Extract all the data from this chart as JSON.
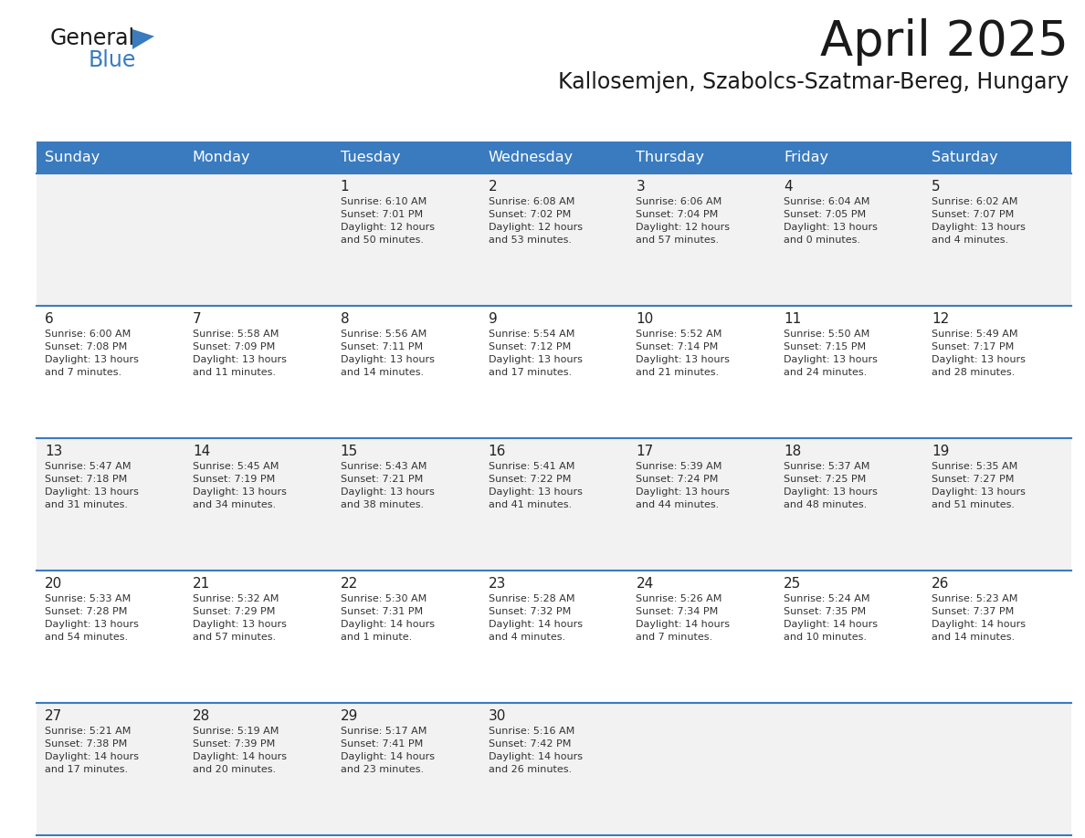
{
  "title": "April 2025",
  "subtitle": "Kallosemjen, Szabolcs-Szatmar-Bereg, Hungary",
  "header_color": "#3a7bbf",
  "header_text_color": "#ffffff",
  "row_colors": [
    "#f2f2f2",
    "#ffffff",
    "#f2f2f2",
    "#ffffff",
    "#f2f2f2"
  ],
  "border_color": "#3a7bbf",
  "text_color": "#333333",
  "day_num_color": "#222222",
  "days_of_week": [
    "Sunday",
    "Monday",
    "Tuesday",
    "Wednesday",
    "Thursday",
    "Friday",
    "Saturday"
  ],
  "weeks": [
    [
      {
        "day": "",
        "info": ""
      },
      {
        "day": "",
        "info": ""
      },
      {
        "day": "1",
        "info": "Sunrise: 6:10 AM\nSunset: 7:01 PM\nDaylight: 12 hours\nand 50 minutes."
      },
      {
        "day": "2",
        "info": "Sunrise: 6:08 AM\nSunset: 7:02 PM\nDaylight: 12 hours\nand 53 minutes."
      },
      {
        "day": "3",
        "info": "Sunrise: 6:06 AM\nSunset: 7:04 PM\nDaylight: 12 hours\nand 57 minutes."
      },
      {
        "day": "4",
        "info": "Sunrise: 6:04 AM\nSunset: 7:05 PM\nDaylight: 13 hours\nand 0 minutes."
      },
      {
        "day": "5",
        "info": "Sunrise: 6:02 AM\nSunset: 7:07 PM\nDaylight: 13 hours\nand 4 minutes."
      }
    ],
    [
      {
        "day": "6",
        "info": "Sunrise: 6:00 AM\nSunset: 7:08 PM\nDaylight: 13 hours\nand 7 minutes."
      },
      {
        "day": "7",
        "info": "Sunrise: 5:58 AM\nSunset: 7:09 PM\nDaylight: 13 hours\nand 11 minutes."
      },
      {
        "day": "8",
        "info": "Sunrise: 5:56 AM\nSunset: 7:11 PM\nDaylight: 13 hours\nand 14 minutes."
      },
      {
        "day": "9",
        "info": "Sunrise: 5:54 AM\nSunset: 7:12 PM\nDaylight: 13 hours\nand 17 minutes."
      },
      {
        "day": "10",
        "info": "Sunrise: 5:52 AM\nSunset: 7:14 PM\nDaylight: 13 hours\nand 21 minutes."
      },
      {
        "day": "11",
        "info": "Sunrise: 5:50 AM\nSunset: 7:15 PM\nDaylight: 13 hours\nand 24 minutes."
      },
      {
        "day": "12",
        "info": "Sunrise: 5:49 AM\nSunset: 7:17 PM\nDaylight: 13 hours\nand 28 minutes."
      }
    ],
    [
      {
        "day": "13",
        "info": "Sunrise: 5:47 AM\nSunset: 7:18 PM\nDaylight: 13 hours\nand 31 minutes."
      },
      {
        "day": "14",
        "info": "Sunrise: 5:45 AM\nSunset: 7:19 PM\nDaylight: 13 hours\nand 34 minutes."
      },
      {
        "day": "15",
        "info": "Sunrise: 5:43 AM\nSunset: 7:21 PM\nDaylight: 13 hours\nand 38 minutes."
      },
      {
        "day": "16",
        "info": "Sunrise: 5:41 AM\nSunset: 7:22 PM\nDaylight: 13 hours\nand 41 minutes."
      },
      {
        "day": "17",
        "info": "Sunrise: 5:39 AM\nSunset: 7:24 PM\nDaylight: 13 hours\nand 44 minutes."
      },
      {
        "day": "18",
        "info": "Sunrise: 5:37 AM\nSunset: 7:25 PM\nDaylight: 13 hours\nand 48 minutes."
      },
      {
        "day": "19",
        "info": "Sunrise: 5:35 AM\nSunset: 7:27 PM\nDaylight: 13 hours\nand 51 minutes."
      }
    ],
    [
      {
        "day": "20",
        "info": "Sunrise: 5:33 AM\nSunset: 7:28 PM\nDaylight: 13 hours\nand 54 minutes."
      },
      {
        "day": "21",
        "info": "Sunrise: 5:32 AM\nSunset: 7:29 PM\nDaylight: 13 hours\nand 57 minutes."
      },
      {
        "day": "22",
        "info": "Sunrise: 5:30 AM\nSunset: 7:31 PM\nDaylight: 14 hours\nand 1 minute."
      },
      {
        "day": "23",
        "info": "Sunrise: 5:28 AM\nSunset: 7:32 PM\nDaylight: 14 hours\nand 4 minutes."
      },
      {
        "day": "24",
        "info": "Sunrise: 5:26 AM\nSunset: 7:34 PM\nDaylight: 14 hours\nand 7 minutes."
      },
      {
        "day": "25",
        "info": "Sunrise: 5:24 AM\nSunset: 7:35 PM\nDaylight: 14 hours\nand 10 minutes."
      },
      {
        "day": "26",
        "info": "Sunrise: 5:23 AM\nSunset: 7:37 PM\nDaylight: 14 hours\nand 14 minutes."
      }
    ],
    [
      {
        "day": "27",
        "info": "Sunrise: 5:21 AM\nSunset: 7:38 PM\nDaylight: 14 hours\nand 17 minutes."
      },
      {
        "day": "28",
        "info": "Sunrise: 5:19 AM\nSunset: 7:39 PM\nDaylight: 14 hours\nand 20 minutes."
      },
      {
        "day": "29",
        "info": "Sunrise: 5:17 AM\nSunset: 7:41 PM\nDaylight: 14 hours\nand 23 minutes."
      },
      {
        "day": "30",
        "info": "Sunrise: 5:16 AM\nSunset: 7:42 PM\nDaylight: 14 hours\nand 26 minutes."
      },
      {
        "day": "",
        "info": ""
      },
      {
        "day": "",
        "info": ""
      },
      {
        "day": "",
        "info": ""
      }
    ]
  ],
  "fig_width": 11.88,
  "fig_height": 9.18,
  "dpi": 100
}
